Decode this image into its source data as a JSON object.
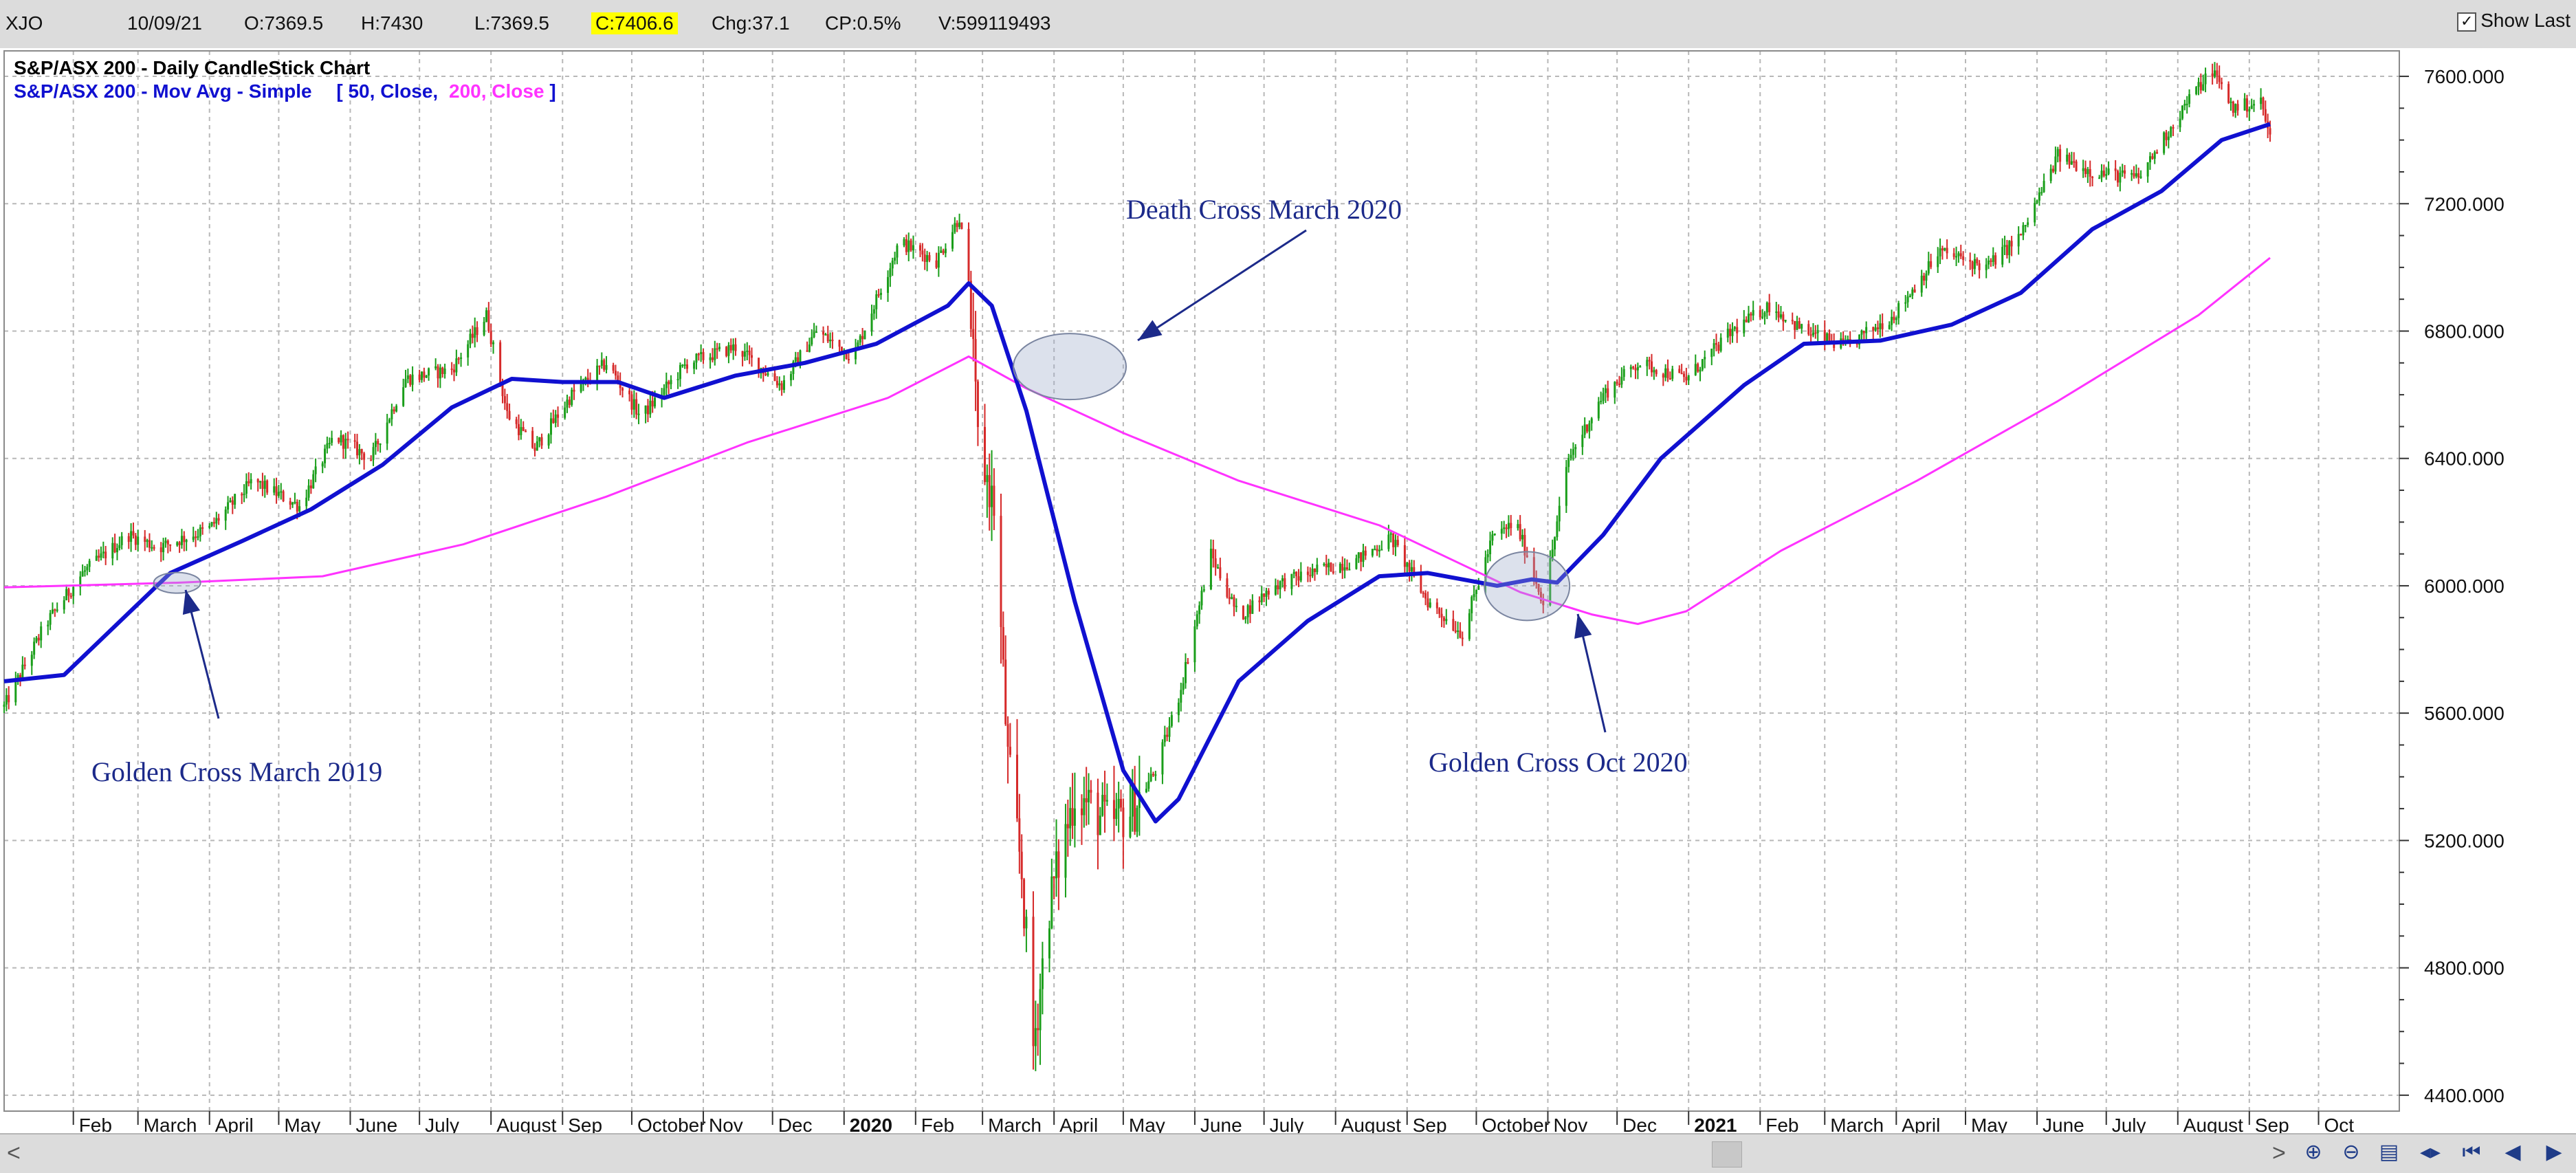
{
  "toolbar": {
    "symbol": "XJO",
    "date": "10/09/21",
    "open": "O:7369.5",
    "high": "H:7430",
    "low": "L:7369.5",
    "close": "C:7406.6",
    "change": "Chg:37.1",
    "change_pct": "CP:0.5%",
    "volume": "V:599119493",
    "show_last_label": "Show Last",
    "show_last_checked": true
  },
  "legend": {
    "line1": "S&P/ASX 200 - Daily CandleStick Chart",
    "line2_prefix": "S&P/ASX 200 - Mov Avg - Simple",
    "line2_bracket_open": "[",
    "ma50_params": "50, Close,",
    "ma200_params": "200, Close",
    "line2_bracket_close": "]"
  },
  "colors": {
    "up_candle": "#1a9e1a",
    "down_candle": "#d62a2a",
    "ma50": "#1010d0",
    "ma200": "#ff33ff",
    "annotation": "#1c2a8a",
    "grid": "#b8b8b8",
    "highlight": "#ffff00"
  },
  "chart_data": {
    "type": "candlestick",
    "title": "S&P/ASX 200 - Daily CandleStick Chart",
    "y_axis_ticks": [
      "7600.000",
      "7200.000",
      "6800.000",
      "6400.000",
      "6000.000",
      "5600.000",
      "5200.000",
      "4800.000",
      "4400.000"
    ],
    "ylim": [
      4350,
      7680
    ],
    "x_axis_labels": [
      {
        "label": "Feb",
        "date": "2019-02-01"
      },
      {
        "label": "March",
        "date": "2019-03-01"
      },
      {
        "label": "April",
        "date": "2019-04-01"
      },
      {
        "label": "May",
        "date": "2019-05-01"
      },
      {
        "label": "June",
        "date": "2019-06-01"
      },
      {
        "label": "July",
        "date": "2019-07-01"
      },
      {
        "label": "August",
        "date": "2019-08-01"
      },
      {
        "label": "Sep",
        "date": "2019-09-01"
      },
      {
        "label": "October",
        "date": "2019-10-01"
      },
      {
        "label": "Nov",
        "date": "2019-11-01"
      },
      {
        "label": "Dec",
        "date": "2019-12-01"
      },
      {
        "label": "2020",
        "date": "2020-01-01",
        "bold": true
      },
      {
        "label": "Feb",
        "date": "2020-02-01"
      },
      {
        "label": "March",
        "date": "2020-03-01"
      },
      {
        "label": "April",
        "date": "2020-04-01"
      },
      {
        "label": "May",
        "date": "2020-05-01"
      },
      {
        "label": "June",
        "date": "2020-06-01"
      },
      {
        "label": "July",
        "date": "2020-07-01"
      },
      {
        "label": "August",
        "date": "2020-08-01"
      },
      {
        "label": "Sep",
        "date": "2020-09-01"
      },
      {
        "label": "October",
        "date": "2020-10-01"
      },
      {
        "label": "Nov",
        "date": "2020-11-01"
      },
      {
        "label": "Dec",
        "date": "2020-12-01"
      },
      {
        "label": "2021",
        "date": "2021-01-01",
        "bold": true
      },
      {
        "label": "Feb",
        "date": "2021-02-01"
      },
      {
        "label": "March",
        "date": "2021-03-01"
      },
      {
        "label": "April",
        "date": "2021-04-01"
      },
      {
        "label": "May",
        "date": "2021-05-01"
      },
      {
        "label": "June",
        "date": "2021-06-01"
      },
      {
        "label": "July",
        "date": "2021-07-01"
      },
      {
        "label": "August",
        "date": "2021-08-01"
      },
      {
        "label": "Sep",
        "date": "2021-09-01"
      },
      {
        "label": "Oct",
        "date": "2021-10-01"
      }
    ],
    "x_range": [
      "2019-01-02",
      "2021-11-05"
    ],
    "price_path": [
      [
        "2019-01-02",
        5620
      ],
      [
        "2019-01-20",
        5880
      ],
      [
        "2019-02-05",
        6040
      ],
      [
        "2019-02-25",
        6160
      ],
      [
        "2019-03-10",
        6120
      ],
      [
        "2019-04-01",
        6180
      ],
      [
        "2019-04-20",
        6330
      ],
      [
        "2019-05-10",
        6250
      ],
      [
        "2019-05-25",
        6470
      ],
      [
        "2019-06-10",
        6400
      ],
      [
        "2019-06-25",
        6650
      ],
      [
        "2019-07-15",
        6680
      ],
      [
        "2019-07-30",
        6850
      ],
      [
        "2019-08-08",
        6540
      ],
      [
        "2019-08-20",
        6430
      ],
      [
        "2019-09-05",
        6600
      ],
      [
        "2019-09-20",
        6700
      ],
      [
        "2019-10-05",
        6530
      ],
      [
        "2019-10-25",
        6700
      ],
      [
        "2019-11-15",
        6750
      ],
      [
        "2019-12-05",
        6630
      ],
      [
        "2019-12-20",
        6800
      ],
      [
        "2020-01-05",
        6720
      ],
      [
        "2020-01-25",
        7080
      ],
      [
        "2020-02-10",
        7020
      ],
      [
        "2020-02-20",
        7160
      ],
      [
        "2020-02-24",
        6940
      ],
      [
        "2020-02-28",
        6450
      ],
      [
        "2020-03-06",
        6250
      ],
      [
        "2020-03-12",
        5450
      ],
      [
        "2020-03-18",
        5100
      ],
      [
        "2020-03-23",
        4550
      ],
      [
        "2020-03-30",
        5000
      ],
      [
        "2020-04-10",
        5350
      ],
      [
        "2020-04-25",
        5250
      ],
      [
        "2020-05-05",
        5300
      ],
      [
        "2020-05-15",
        5420
      ],
      [
        "2020-05-25",
        5650
      ],
      [
        "2020-06-08",
        6100
      ],
      [
        "2020-06-20",
        5900
      ],
      [
        "2020-07-05",
        6000
      ],
      [
        "2020-07-25",
        6050
      ],
      [
        "2020-08-10",
        6080
      ],
      [
        "2020-08-25",
        6150
      ],
      [
        "2020-09-10",
        5950
      ],
      [
        "2020-09-25",
        5850
      ],
      [
        "2020-10-08",
        6150
      ],
      [
        "2020-10-18",
        6200
      ],
      [
        "2020-10-30",
        5950
      ],
      [
        "2020-11-10",
        6400
      ],
      [
        "2020-11-25",
        6600
      ],
      [
        "2020-12-10",
        6700
      ],
      [
        "2020-12-31",
        6650
      ],
      [
        "2021-01-20",
        6800
      ],
      [
        "2021-02-05",
        6880
      ],
      [
        "2021-02-20",
        6800
      ],
      [
        "2021-03-10",
        6750
      ],
      [
        "2021-03-31",
        6850
      ],
      [
        "2021-04-20",
        7050
      ],
      [
        "2021-05-10",
        7000
      ],
      [
        "2021-05-25",
        7100
      ],
      [
        "2021-06-10",
        7350
      ],
      [
        "2021-06-25",
        7300
      ],
      [
        "2021-07-15",
        7280
      ],
      [
        "2021-08-05",
        7520
      ],
      [
        "2021-08-16",
        7620
      ],
      [
        "2021-08-25",
        7500
      ],
      [
        "2021-09-06",
        7520
      ],
      [
        "2021-09-10",
        7406.6
      ]
    ],
    "ma50_path": [
      [
        "2019-01-02",
        5700
      ],
      [
        "2019-01-28",
        5720
      ],
      [
        "2019-02-20",
        5880
      ],
      [
        "2019-03-15",
        6040
      ],
      [
        "2019-04-15",
        6140
      ],
      [
        "2019-05-15",
        6240
      ],
      [
        "2019-06-15",
        6380
      ],
      [
        "2019-07-15",
        6560
      ],
      [
        "2019-08-10",
        6650
      ],
      [
        "2019-09-01",
        6640
      ],
      [
        "2019-09-25",
        6640
      ],
      [
        "2019-10-15",
        6590
      ],
      [
        "2019-11-15",
        6660
      ],
      [
        "2019-12-15",
        6700
      ],
      [
        "2020-01-15",
        6760
      ],
      [
        "2020-02-15",
        6880
      ],
      [
        "2020-02-24",
        6950
      ],
      [
        "2020-03-05",
        6880
      ],
      [
        "2020-03-20",
        6550
      ],
      [
        "2020-04-10",
        5950
      ],
      [
        "2020-05-01",
        5420
      ],
      [
        "2020-05-15",
        5260
      ],
      [
        "2020-05-25",
        5330
      ],
      [
        "2020-06-20",
        5700
      ],
      [
        "2020-07-20",
        5890
      ],
      [
        "2020-08-20",
        6030
      ],
      [
        "2020-09-10",
        6040
      ],
      [
        "2020-10-10",
        6000
      ],
      [
        "2020-10-25",
        6020
      ],
      [
        "2020-11-05",
        6010
      ],
      [
        "2020-11-25",
        6160
      ],
      [
        "2020-12-20",
        6400
      ],
      [
        "2021-01-25",
        6630
      ],
      [
        "2021-02-20",
        6760
      ],
      [
        "2021-03-25",
        6770
      ],
      [
        "2021-04-25",
        6820
      ],
      [
        "2021-05-25",
        6920
      ],
      [
        "2021-06-25",
        7120
      ],
      [
        "2021-07-25",
        7240
      ],
      [
        "2021-08-20",
        7400
      ],
      [
        "2021-09-10",
        7450
      ]
    ],
    "ma200_path": [
      [
        "2019-01-02",
        5995
      ],
      [
        "2019-03-20",
        6010
      ],
      [
        "2019-05-20",
        6030
      ],
      [
        "2019-07-20",
        6130
      ],
      [
        "2019-09-20",
        6280
      ],
      [
        "2019-11-20",
        6450
      ],
      [
        "2020-01-20",
        6590
      ],
      [
        "2020-02-24",
        6720
      ],
      [
        "2020-03-20",
        6620
      ],
      [
        "2020-05-01",
        6480
      ],
      [
        "2020-06-20",
        6330
      ],
      [
        "2020-08-20",
        6190
      ],
      [
        "2020-10-20",
        5980
      ],
      [
        "2020-11-20",
        5910
      ],
      [
        "2020-12-10",
        5880
      ],
      [
        "2020-12-31",
        5920
      ],
      [
        "2021-02-10",
        6110
      ],
      [
        "2021-04-10",
        6330
      ],
      [
        "2021-06-10",
        6580
      ],
      [
        "2021-08-10",
        6850
      ],
      [
        "2021-09-10",
        7030
      ]
    ],
    "annotations": [
      {
        "text": "Death Cross March 2020",
        "anchor_date": "2020-03-12",
        "anchor_value": 6710
      },
      {
        "text": "Golden Cross March 2019",
        "anchor_date": "2019-03-15",
        "anchor_value": 6020
      },
      {
        "text": "Golden Cross Oct 2020",
        "anchor_date": "2020-10-20",
        "anchor_value": 6010
      }
    ],
    "grid": true
  },
  "scrollbar": {
    "left_arrow": "<",
    "right_arrow": ">"
  },
  "nav_icons": [
    "zoom-in-icon",
    "zoom-out-icon",
    "scroll-icon",
    "fit-icon",
    "first-icon",
    "prev-icon",
    "next-icon"
  ]
}
